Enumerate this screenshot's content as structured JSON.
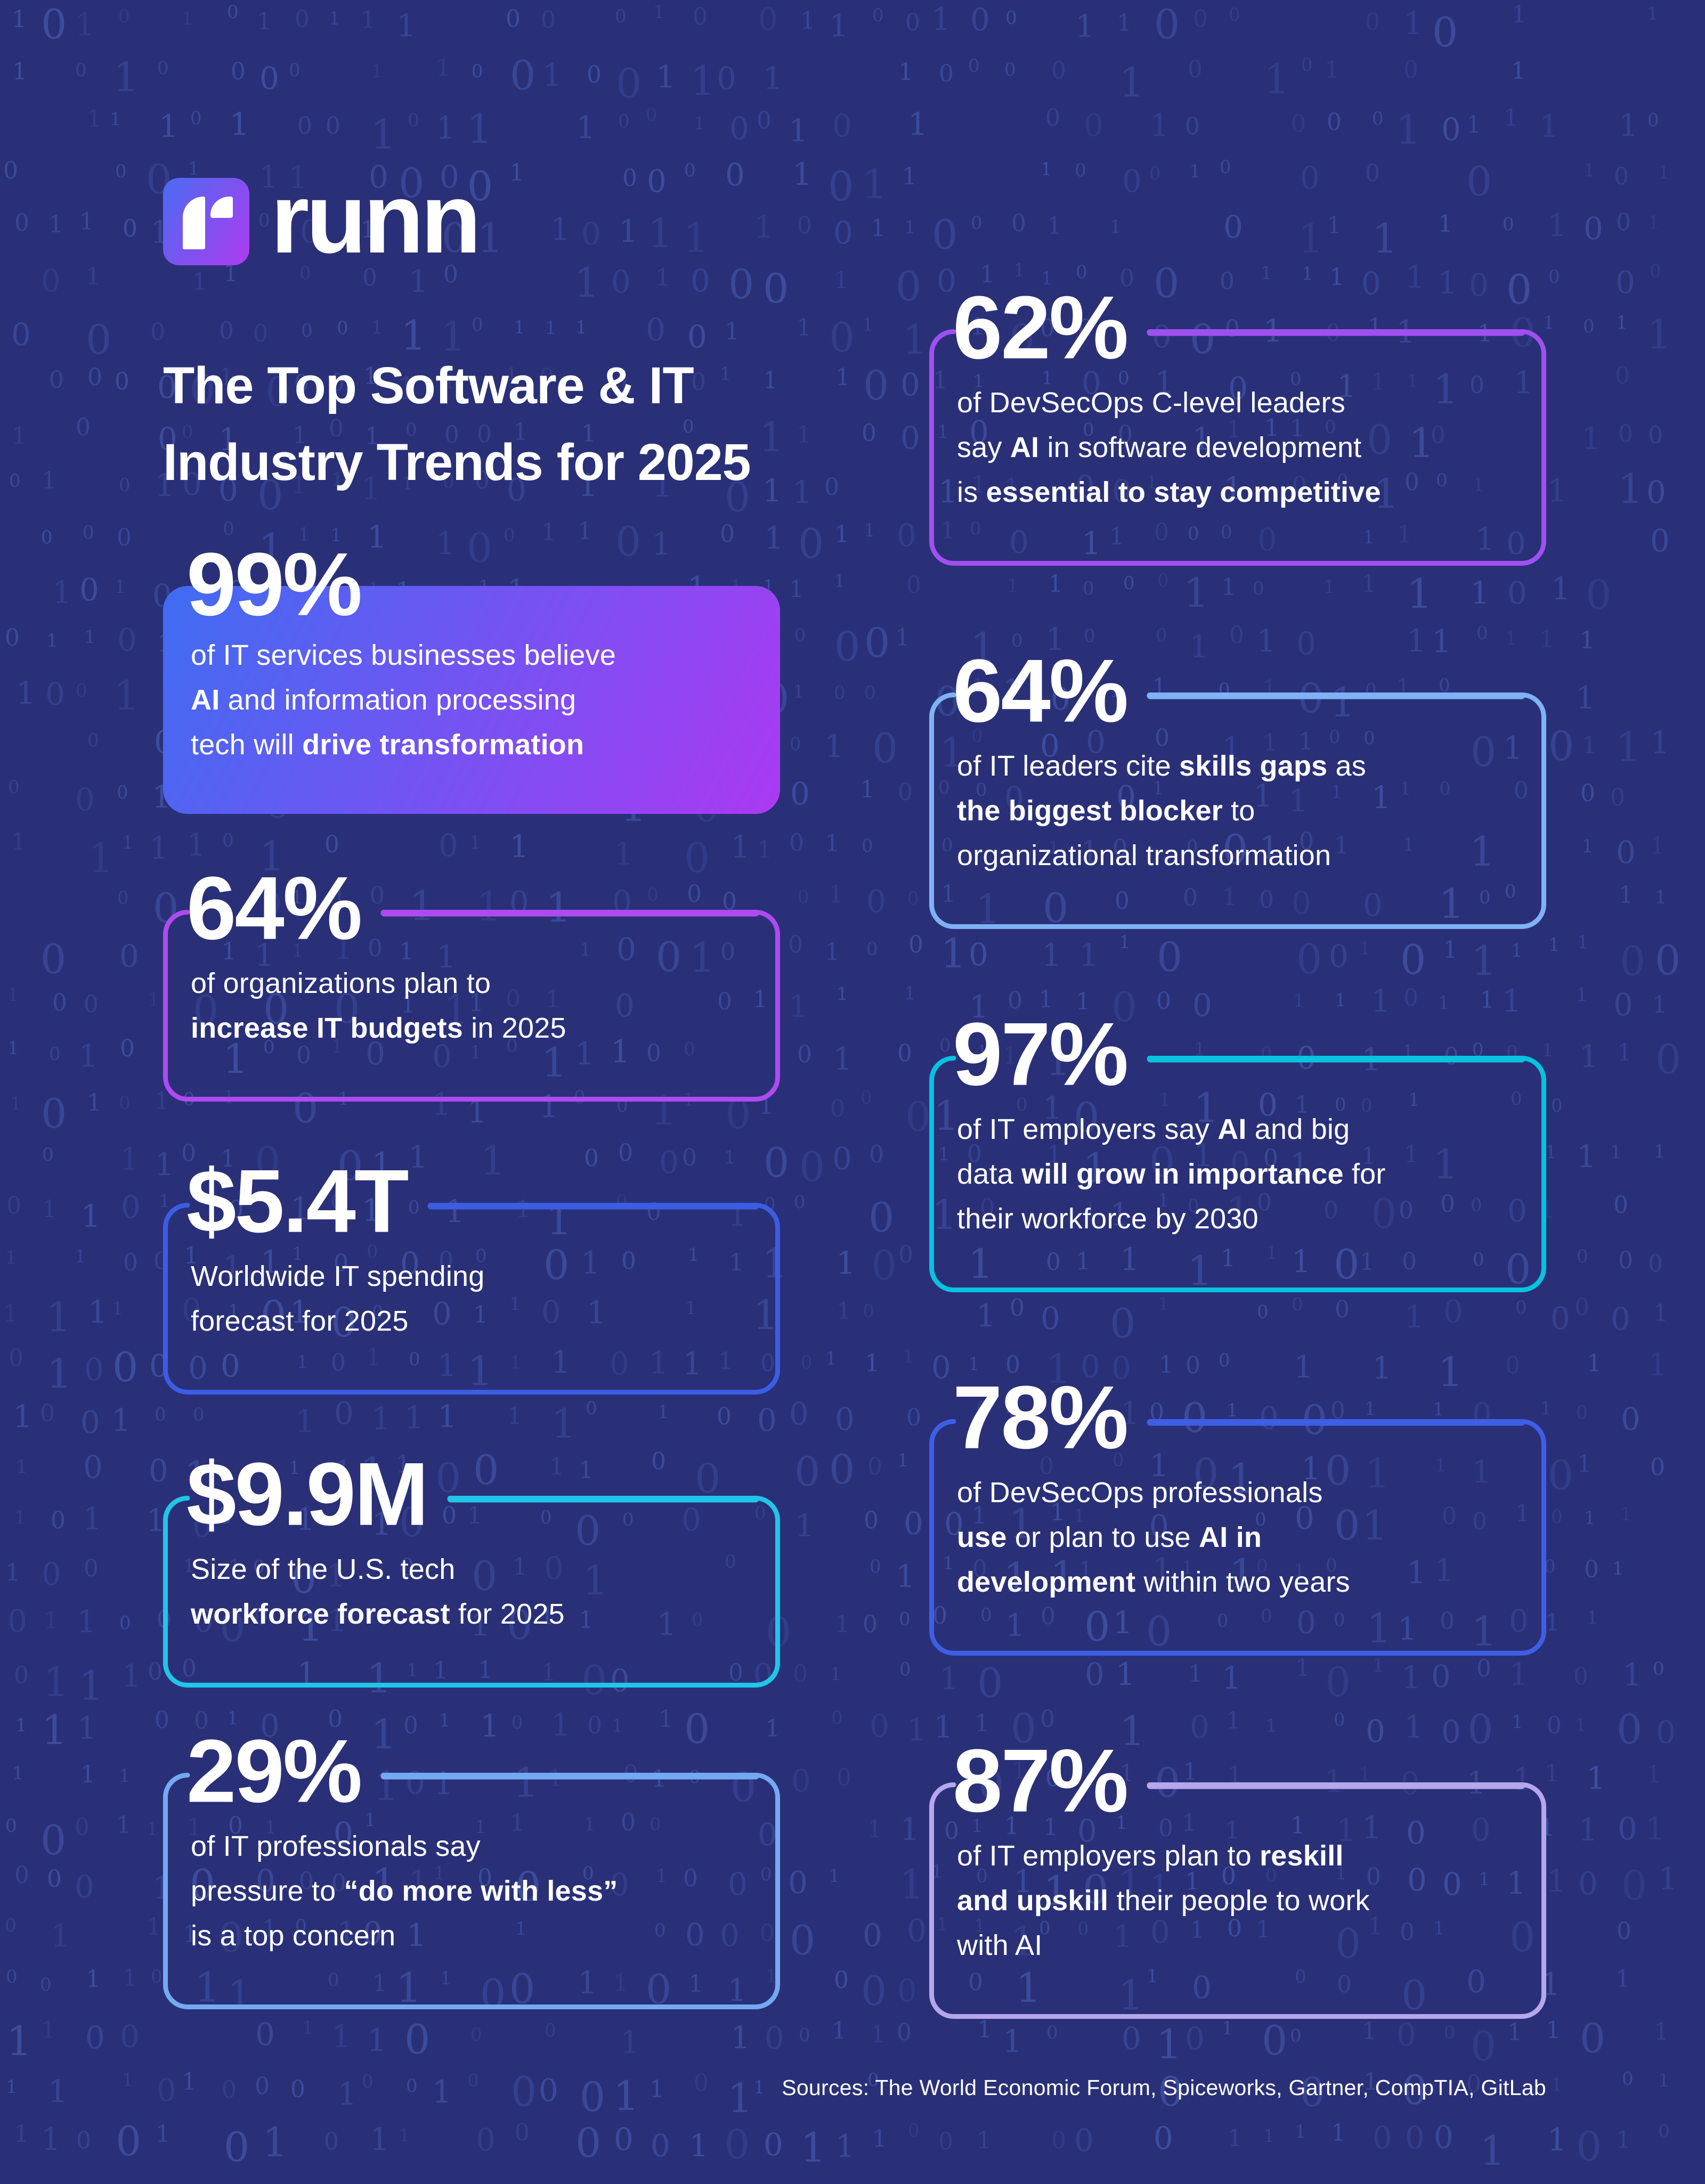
{
  "page": {
    "background_color": "#2a3077",
    "binary_pattern": {
      "chars": [
        "1",
        "0"
      ],
      "color": "#4354a8"
    },
    "footer_sources": "Sources: The World Economic Forum, Spiceworks, Gartner, CompTIA, GitLab"
  },
  "logo": {
    "wordmark": "runn",
    "mark_letter": "r",
    "gradient_start": "#4a6cf2",
    "gradient_end": "#ae3bef"
  },
  "title": {
    "line1": "The Top Software & IT",
    "line2": "Industry Trends for 2025"
  },
  "cards": [
    {
      "stat": "99%",
      "style": "filled",
      "column": "left",
      "gradient_start": "#3f6cf2",
      "gradient_end": "#ab3af2",
      "accent": "#7b52f2",
      "body": [
        {
          "t": "of IT services businesses believe\n",
          "b": false
        },
        {
          "t": "AI",
          "b": true
        },
        {
          "t": " and information processing\ntech will ",
          "b": false
        },
        {
          "t": "drive transformation",
          "b": true
        }
      ]
    },
    {
      "stat": "64%",
      "style": "outlined",
      "column": "left",
      "accent": "#ae4af0",
      "body": [
        {
          "t": "of organizations plan to\n",
          "b": false
        },
        {
          "t": "increase IT budgets",
          "b": true
        },
        {
          "t": " in 2025",
          "b": false
        }
      ]
    },
    {
      "stat": "$5.4T",
      "style": "outlined",
      "column": "left",
      "accent": "#3c5ce2",
      "body": [
        {
          "t": "Worldwide IT spending\nforecast for 2025",
          "b": false
        }
      ]
    },
    {
      "stat": "$9.9M",
      "style": "outlined",
      "column": "left",
      "accent": "#20c5e8",
      "body": [
        {
          "t": "Size of the U.S. tech\n",
          "b": false
        },
        {
          "t": "workforce forecast",
          "b": true
        },
        {
          "t": " for 2025",
          "b": false
        }
      ]
    },
    {
      "stat": "29%",
      "style": "outlined",
      "column": "left",
      "accent": "#74a9f2",
      "body": [
        {
          "t": "of IT professionals say\npressure to ",
          "b": false
        },
        {
          "t": "“do more with less”",
          "b": true
        },
        {
          "t": "\nis a top concern",
          "b": false
        }
      ]
    },
    {
      "stat": "62%",
      "style": "outlined",
      "column": "right",
      "accent": "#a050f0",
      "body": [
        {
          "t": "of DevSecOps C-level leaders\nsay ",
          "b": false
        },
        {
          "t": "AI",
          "b": true
        },
        {
          "t": " in software development\nis ",
          "b": false
        },
        {
          "t": "essential to stay competitive",
          "b": true
        }
      ]
    },
    {
      "stat": "64%",
      "style": "outlined",
      "column": "right",
      "accent": "#7fb2f5",
      "body": [
        {
          "t": "of IT leaders cite ",
          "b": false
        },
        {
          "t": "skills gaps",
          "b": true
        },
        {
          "t": " as\n",
          "b": false
        },
        {
          "t": "the biggest blocker",
          "b": true
        },
        {
          "t": " to\norganizational transformation",
          "b": false
        }
      ]
    },
    {
      "stat": "97%",
      "style": "outlined",
      "column": "right",
      "accent": "#06c3de",
      "body": [
        {
          "t": "of IT employers say ",
          "b": false
        },
        {
          "t": "AI",
          "b": true
        },
        {
          "t": " and big\ndata ",
          "b": false
        },
        {
          "t": "will grow in importance",
          "b": true
        },
        {
          "t": " for\ntheir workforce by 2030",
          "b": false
        }
      ]
    },
    {
      "stat": "78%",
      "style": "outlined",
      "column": "right",
      "accent": "#3e5ee4",
      "body": [
        {
          "t": "of DevSecOps professionals\n",
          "b": false
        },
        {
          "t": "use",
          "b": true
        },
        {
          "t": " or plan to use ",
          "b": false
        },
        {
          "t": "AI in\ndevelopment",
          "b": true
        },
        {
          "t": " within two years",
          "b": false
        }
      ]
    },
    {
      "stat": "87%",
      "style": "outlined",
      "column": "right",
      "accent": "#b5a7ea",
      "body": [
        {
          "t": "of IT employers plan to ",
          "b": false
        },
        {
          "t": "reskill\nand upskill",
          "b": true
        },
        {
          "t": " their people to work\nwith AI",
          "b": false
        }
      ]
    }
  ]
}
